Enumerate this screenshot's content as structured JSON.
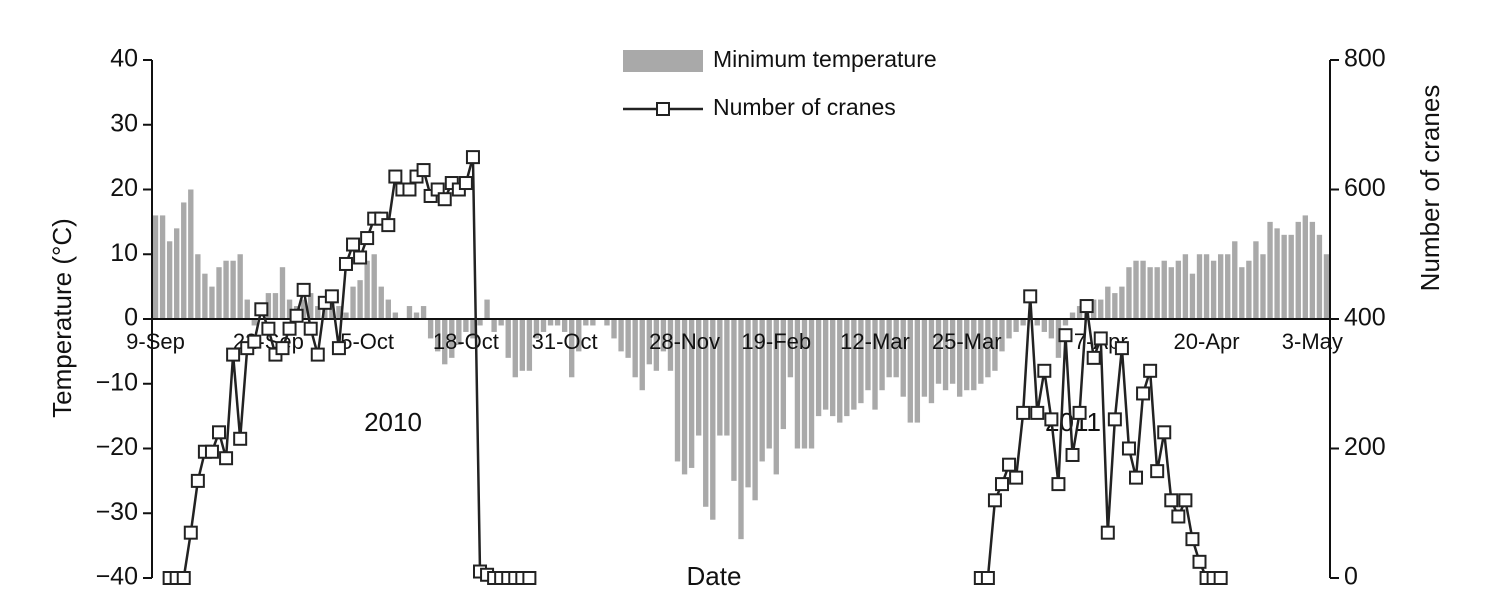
{
  "chart_data": {
    "type": "bar",
    "categories": [
      "9-Sep",
      null,
      null,
      null,
      null,
      null,
      null,
      null,
      null,
      null,
      null,
      null,
      null,
      null,
      null,
      null,
      "22-Sep",
      null,
      null,
      null,
      null,
      null,
      null,
      null,
      null,
      null,
      null,
      null,
      null,
      null,
      "5-Oct",
      null,
      null,
      null,
      null,
      null,
      null,
      null,
      null,
      null,
      null,
      null,
      null,
      null,
      "18-Oct",
      null,
      null,
      null,
      null,
      null,
      null,
      null,
      null,
      null,
      null,
      null,
      null,
      null,
      "31-Oct",
      null,
      null,
      null,
      null,
      null,
      null,
      null,
      null,
      null,
      null,
      null,
      null,
      null,
      null,
      null,
      null,
      "28-Nov",
      null,
      null,
      null,
      null,
      null,
      null,
      null,
      null,
      null,
      null,
      null,
      null,
      "19-Feb",
      null,
      null,
      null,
      null,
      null,
      null,
      null,
      null,
      null,
      null,
      null,
      null,
      null,
      "12-Mar",
      null,
      null,
      null,
      null,
      null,
      null,
      null,
      null,
      null,
      null,
      null,
      null,
      "25-Mar",
      null,
      null,
      null,
      null,
      null,
      null,
      null,
      null,
      null,
      null,
      null,
      null,
      null,
      null,
      null,
      null,
      null,
      null,
      "7-Apr",
      null,
      null,
      null,
      null,
      null,
      null,
      null,
      null,
      null,
      null,
      null,
      null,
      null,
      null,
      "20-Apr",
      null,
      null,
      null,
      null,
      null,
      null,
      null,
      null,
      null,
      null,
      null,
      null,
      null,
      null,
      "3-May",
      null,
      null
    ],
    "series": [
      {
        "name": "Minimum temperature",
        "type": "bar",
        "color": "#a9a9a9",
        "values": [
          16,
          16,
          12,
          14,
          18,
          20,
          10,
          7,
          5,
          8,
          9,
          9,
          10,
          3,
          -1,
          0,
          4,
          4,
          8,
          3,
          2,
          3,
          4,
          2,
          2,
          3,
          2,
          1,
          5,
          6,
          9,
          10,
          5,
          3,
          1,
          0,
          2,
          1,
          2,
          -3,
          -5,
          -7,
          -6,
          -4,
          -2,
          -3,
          -1,
          3,
          -2,
          -1,
          -6,
          -9,
          -8,
          -8,
          -3,
          -2,
          -1,
          -1,
          -2,
          -9,
          -5,
          -1,
          -1,
          0,
          -1,
          -3,
          -5,
          -6,
          -9,
          -11,
          -7,
          -8,
          -5,
          -8,
          -22,
          -24,
          -23,
          -18,
          -29,
          -31,
          -18,
          -18,
          -25,
          -34,
          -26,
          -28,
          -22,
          -20,
          -24,
          -17,
          -9,
          -20,
          -20,
          -20,
          -15,
          -14,
          -15,
          -16,
          -15,
          -14,
          -13,
          -11,
          -14,
          -11,
          -9,
          -9,
          -12,
          -16,
          -16,
          -12,
          -13,
          -10,
          -11,
          -10,
          -12,
          -11,
          -11,
          -10,
          -9,
          -8,
          -5,
          -3,
          -2,
          -1,
          0,
          -1,
          -2,
          -3,
          -6,
          -1,
          1,
          2,
          3,
          3,
          3,
          5,
          4,
          5,
          8,
          9,
          9,
          8,
          8,
          9,
          8,
          9,
          10,
          7,
          10,
          10,
          9,
          10,
          10,
          12,
          8,
          9,
          12,
          10,
          15,
          14,
          13,
          13,
          15,
          16,
          15,
          13,
          10
        ]
      },
      {
        "name": "Number of cranes",
        "type": "line",
        "axis": "y2",
        "color": "#222222",
        "marker": "square",
        "values": [
          null,
          null,
          0,
          0,
          0,
          70,
          150,
          195,
          195,
          225,
          185,
          345,
          215,
          355,
          365,
          415,
          385,
          345,
          355,
          385,
          405,
          445,
          385,
          345,
          425,
          435,
          355,
          485,
          515,
          495,
          525,
          555,
          555,
          545,
          620,
          600,
          600,
          620,
          630,
          590,
          600,
          585,
          610,
          600,
          610,
          650,
          10,
          5,
          0,
          0,
          0,
          0,
          0,
          0,
          null,
          null,
          null,
          null,
          null,
          null,
          null,
          null,
          null,
          null,
          null,
          null,
          null,
          null,
          null,
          null,
          null,
          null,
          null,
          null,
          null,
          null,
          null,
          null,
          null,
          null,
          null,
          null,
          null,
          null,
          null,
          null,
          null,
          null,
          null,
          null,
          null,
          null,
          null,
          null,
          null,
          null,
          null,
          null,
          null,
          null,
          null,
          null,
          null,
          null,
          null,
          null,
          null,
          null,
          null,
          null,
          null,
          null,
          null,
          null,
          null,
          null,
          null,
          0,
          0,
          120,
          145,
          175,
          155,
          255,
          435,
          255,
          320,
          245,
          145,
          375,
          190,
          255,
          420,
          340,
          370,
          70,
          245,
          355,
          200,
          155,
          285,
          320,
          165,
          225,
          120,
          95,
          120,
          60,
          25,
          0,
          0,
          0,
          null,
          null,
          null,
          null,
          null,
          null,
          null,
          null,
          null,
          null,
          null,
          null,
          null,
          null,
          null
        ]
      }
    ],
    "xlabel": "Date",
    "ylabel": "Temperature (°C)",
    "y2label": "Number of cranes",
    "annotations": [
      "2010",
      "2011"
    ],
    "ylim": [
      -40,
      40
    ],
    "yticks": [
      {
        "value": -40,
        "label": "−40"
      },
      {
        "value": -30,
        "label": "−30"
      },
      {
        "value": -20,
        "label": "−20"
      },
      {
        "value": -10,
        "label": "−10"
      },
      0,
      10,
      20,
      30,
      40
    ],
    "y2lim": [
      0,
      800
    ],
    "y2ticks": [
      0,
      200,
      400,
      600,
      800
    ],
    "legend": "top"
  }
}
